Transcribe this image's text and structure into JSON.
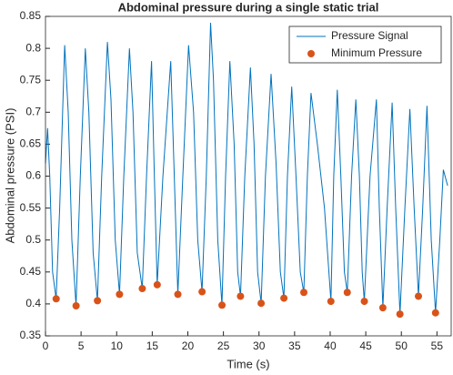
{
  "chart_data": {
    "type": "line",
    "title": "Abdominal pressure during a single static trial",
    "x_label": "Time (s)",
    "y_label": "Abdominal pressure (PSI)",
    "xlim": [
      0,
      57
    ],
    "ylim": [
      0.35,
      0.85
    ],
    "xticks": [
      0,
      5,
      10,
      15,
      20,
      25,
      30,
      35,
      40,
      45,
      50,
      55
    ],
    "yticks": [
      0.35,
      0.4,
      0.45,
      0.5,
      0.55,
      0.6,
      0.65,
      0.7,
      0.75,
      0.8,
      0.85
    ],
    "legend": "northeast",
    "series": [
      {
        "name": "Pressure Signal",
        "color": "#0072bd",
        "style": "line",
        "x": [
          0,
          0.3,
          0.6,
          1.0,
          1.5,
          2.0,
          2.7,
          3.2,
          3.7,
          4.3,
          4.9,
          5.6,
          6.1,
          6.7,
          7.3,
          7.9,
          8.7,
          9.2,
          9.8,
          10.4,
          11.0,
          11.8,
          12.3,
          12.9,
          13.6,
          14.2,
          14.9,
          15.3,
          15.7,
          16.5,
          17.6,
          18.1,
          18.6,
          19.3,
          20.1,
          20.8,
          21.4,
          22,
          22.6,
          23.2,
          23.6,
          24.2,
          24.8,
          25.3,
          25.9,
          26.5,
          27.0,
          27.4,
          28.0,
          28.8,
          29.3,
          29.8,
          30.3,
          30.9,
          31.7,
          32.4,
          33.0,
          33.5,
          34.0,
          34.6,
          35.2,
          35.8,
          36.3,
          36.8,
          37.3,
          38.2,
          39.2,
          40.1,
          40.5,
          41.0,
          41.5,
          42.0,
          42.4,
          43.0,
          43.6,
          44.1,
          44.5,
          44.8,
          45.6,
          46.5,
          46.9,
          47.4,
          48.0,
          48.7,
          49.2,
          49.8,
          50.5,
          51.2,
          51.8,
          52.4,
          53.0,
          53.6,
          54.2,
          54.8,
          55.4,
          55.9,
          56.5
        ],
        "values": [
          0.62,
          0.675,
          0.6,
          0.45,
          0.408,
          0.55,
          0.805,
          0.7,
          0.5,
          0.397,
          0.6,
          0.8,
          0.7,
          0.48,
          0.405,
          0.6,
          0.81,
          0.72,
          0.5,
          0.415,
          0.6,
          0.8,
          0.7,
          0.48,
          0.424,
          0.6,
          0.78,
          0.6,
          0.43,
          0.6,
          0.78,
          0.6,
          0.415,
          0.6,
          0.805,
          0.7,
          0.5,
          0.419,
          0.6,
          0.84,
          0.75,
          0.5,
          0.398,
          0.6,
          0.78,
          0.65,
          0.45,
          0.412,
          0.6,
          0.77,
          0.65,
          0.45,
          0.401,
          0.6,
          0.76,
          0.62,
          0.45,
          0.409,
          0.6,
          0.74,
          0.6,
          0.45,
          0.418,
          0.6,
          0.73,
          0.65,
          0.55,
          0.404,
          0.6,
          0.735,
          0.6,
          0.45,
          0.418,
          0.6,
          0.72,
          0.6,
          0.45,
          0.404,
          0.6,
          0.72,
          0.55,
          0.394,
          0.55,
          0.715,
          0.55,
          0.384,
          0.55,
          0.705,
          0.55,
          0.412,
          0.55,
          0.71,
          0.5,
          0.386,
          0.5,
          0.61,
          0.585
        ]
      },
      {
        "name": "Minimum Pressure",
        "color": "#d95319",
        "style": "marker",
        "x": [
          1.5,
          4.3,
          7.3,
          10.4,
          13.6,
          15.7,
          18.6,
          22,
          24.8,
          27.4,
          30.3,
          33.5,
          36.3,
          40.1,
          42.4,
          44.8,
          47.4,
          49.8,
          52.4,
          54.8
        ],
        "values": [
          0.408,
          0.397,
          0.405,
          0.415,
          0.424,
          0.43,
          0.415,
          0.419,
          0.398,
          0.412,
          0.401,
          0.409,
          0.418,
          0.404,
          0.418,
          0.404,
          0.394,
          0.384,
          0.412,
          0.386
        ]
      }
    ]
  }
}
